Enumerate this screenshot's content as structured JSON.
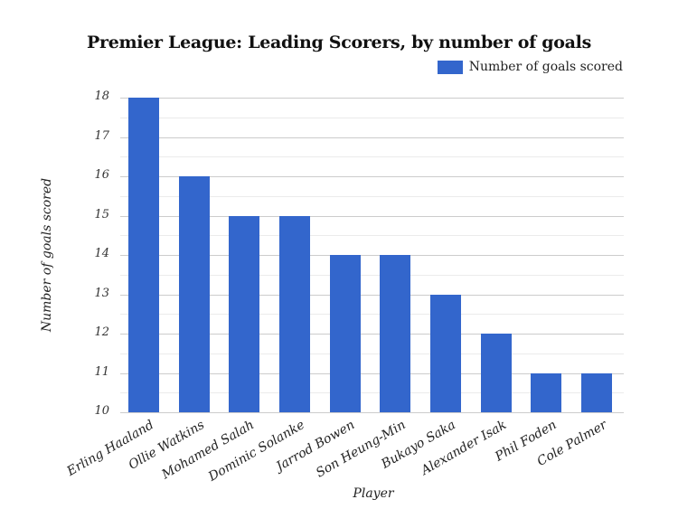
{
  "chart_data": {
    "type": "bar",
    "title": "Premier League: Leading Scorers, by number of goals",
    "xlabel": "Player",
    "ylabel": "Number of goals scored",
    "legend": [
      "Number of goals scored"
    ],
    "legend_position": "top-right",
    "categories": [
      "Erling Haaland",
      "Ollie Watkins",
      "Mohamed Salah",
      "Dominic Solanke",
      "Jarrod Bowen",
      "Son Heung-Min",
      "Bukayo Saka",
      "Alexander Isak",
      "Phil Foden",
      "Cole Palmer"
    ],
    "series": [
      {
        "name": "Number of goals scored",
        "values": [
          18,
          16,
          15,
          15,
          14,
          14,
          13,
          12,
          11,
          11
        ],
        "color": "#3366cc"
      }
    ],
    "ylim": [
      10,
      18
    ],
    "yticks": [
      "10",
      "11",
      "12",
      "13",
      "14",
      "15",
      "16",
      "17",
      "18"
    ],
    "grid": true
  },
  "colors": {
    "bar": "#3366cc",
    "grid_major": "#cccccc",
    "grid_minor": "#ebebeb"
  }
}
